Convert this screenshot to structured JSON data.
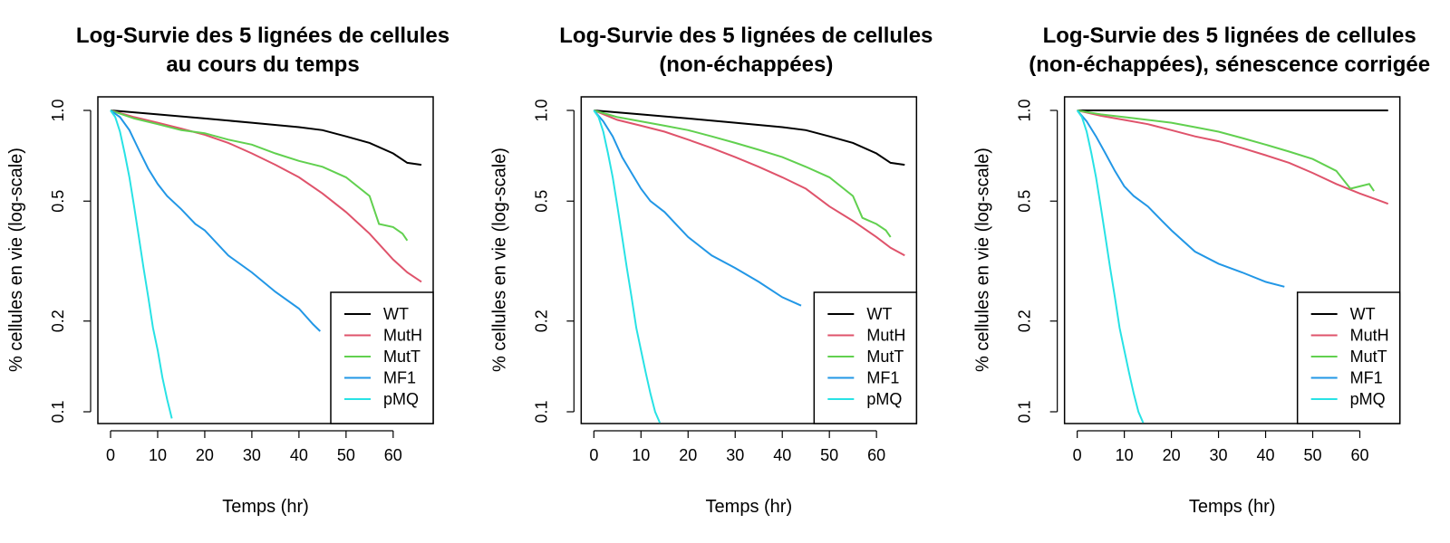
{
  "chart_data": [
    {
      "type": "line",
      "title": [
        "Log-Survie des 5 lignées de cellules",
        "au cours du temps"
      ],
      "xlabel": "Temps (hr)",
      "ylabel": "% cellules en vie (log-scale)",
      "xlim": [
        0,
        66
      ],
      "ylim": [
        0.1,
        1.0
      ],
      "y_scale": "log",
      "xticks": [
        0,
        10,
        20,
        30,
        40,
        50,
        60
      ],
      "yticks": [
        0.1,
        0.2,
        0.5,
        1.0
      ],
      "ytick_labels": [
        "0.1",
        "0.2",
        "0.5",
        "1.0"
      ],
      "legend_position": "bottom-right",
      "series": [
        {
          "name": "WT",
          "color": "#000000",
          "x": [
            0,
            10,
            20,
            30,
            40,
            45,
            50,
            55,
            60,
            63,
            66
          ],
          "values": [
            1.0,
            0.97,
            0.94,
            0.91,
            0.88,
            0.86,
            0.82,
            0.78,
            0.72,
            0.67,
            0.66
          ]
        },
        {
          "name": "MutH",
          "color": "#DF536B",
          "x": [
            0,
            5,
            10,
            15,
            20,
            25,
            30,
            35,
            40,
            45,
            50,
            55,
            60,
            63,
            66
          ],
          "values": [
            1.0,
            0.95,
            0.91,
            0.87,
            0.83,
            0.78,
            0.72,
            0.66,
            0.6,
            0.53,
            0.46,
            0.39,
            0.32,
            0.29,
            0.27
          ]
        },
        {
          "name": "MutT",
          "color": "#61D04F",
          "x": [
            0,
            5,
            10,
            15,
            20,
            25,
            30,
            35,
            40,
            45,
            50,
            55,
            57,
            60,
            62,
            63
          ],
          "values": [
            1.0,
            0.94,
            0.9,
            0.86,
            0.84,
            0.8,
            0.77,
            0.72,
            0.68,
            0.65,
            0.6,
            0.52,
            0.42,
            0.41,
            0.39,
            0.37
          ]
        },
        {
          "name": "MF1",
          "color": "#2297E6",
          "x": [
            0,
            2,
            4,
            6,
            8,
            10,
            12,
            15,
            18,
            20,
            25,
            30,
            35,
            40,
            43,
            44.5
          ],
          "values": [
            1.0,
            0.95,
            0.86,
            0.74,
            0.64,
            0.57,
            0.52,
            0.47,
            0.42,
            0.4,
            0.33,
            0.29,
            0.25,
            0.22,
            0.195,
            0.185
          ]
        },
        {
          "name": "pMQ",
          "color": "#28E2E5",
          "x": [
            0,
            1,
            2,
            3,
            4,
            5,
            6,
            7,
            8,
            9,
            10,
            11,
            12,
            13
          ],
          "values": [
            1.0,
            0.95,
            0.85,
            0.72,
            0.6,
            0.48,
            0.38,
            0.3,
            0.24,
            0.19,
            0.16,
            0.13,
            0.11,
            0.095
          ]
        }
      ]
    },
    {
      "type": "line",
      "title": [
        "Log-Survie des 5 lignées de cellules",
        "(non-échappées)"
      ],
      "xlabel": "Temps (hr)",
      "ylabel": "% cellules en vie (log-scale)",
      "xlim": [
        0,
        66
      ],
      "ylim": [
        0.1,
        1.0
      ],
      "y_scale": "log",
      "xticks": [
        0,
        10,
        20,
        30,
        40,
        50,
        60
      ],
      "yticks": [
        0.1,
        0.2,
        0.5,
        1.0
      ],
      "ytick_labels": [
        "0.1",
        "0.2",
        "0.5",
        "1.0"
      ],
      "legend_position": "bottom-right",
      "series": [
        {
          "name": "WT",
          "color": "#000000",
          "x": [
            0,
            10,
            20,
            30,
            40,
            45,
            50,
            55,
            60,
            63,
            66
          ],
          "values": [
            1.0,
            0.97,
            0.94,
            0.91,
            0.88,
            0.86,
            0.82,
            0.78,
            0.72,
            0.67,
            0.66
          ]
        },
        {
          "name": "MutH",
          "color": "#DF536B",
          "x": [
            0,
            5,
            10,
            15,
            20,
            25,
            30,
            35,
            40,
            45,
            50,
            55,
            60,
            63,
            66
          ],
          "values": [
            1.0,
            0.93,
            0.89,
            0.85,
            0.8,
            0.75,
            0.7,
            0.65,
            0.6,
            0.55,
            0.48,
            0.43,
            0.38,
            0.35,
            0.33
          ]
        },
        {
          "name": "MutT",
          "color": "#61D04F",
          "x": [
            0,
            5,
            10,
            15,
            20,
            25,
            30,
            35,
            40,
            45,
            50,
            55,
            57,
            60,
            62,
            63
          ],
          "values": [
            1.0,
            0.95,
            0.92,
            0.89,
            0.86,
            0.82,
            0.78,
            0.74,
            0.7,
            0.65,
            0.6,
            0.52,
            0.44,
            0.42,
            0.4,
            0.38
          ]
        },
        {
          "name": "MF1",
          "color": "#2297E6",
          "x": [
            0,
            2,
            4,
            6,
            8,
            10,
            12,
            15,
            18,
            20,
            25,
            30,
            35,
            40,
            44
          ],
          "values": [
            1.0,
            0.92,
            0.82,
            0.7,
            0.62,
            0.55,
            0.5,
            0.46,
            0.41,
            0.38,
            0.33,
            0.3,
            0.27,
            0.24,
            0.225
          ]
        },
        {
          "name": "pMQ",
          "color": "#28E2E5",
          "x": [
            0,
            1,
            2,
            3,
            4,
            5,
            6,
            7,
            8,
            9,
            10,
            11,
            12,
            13,
            14
          ],
          "values": [
            1.0,
            0.95,
            0.85,
            0.72,
            0.6,
            0.48,
            0.38,
            0.3,
            0.24,
            0.19,
            0.16,
            0.135,
            0.115,
            0.1,
            0.092
          ]
        }
      ]
    },
    {
      "type": "line",
      "title": [
        "Log-Survie des 5 lignées de cellules",
        "(non-échappées), sénescence corrigée"
      ],
      "xlabel": "Temps (hr)",
      "ylabel": "% cellules en vie (log-scale)",
      "xlim": [
        0,
        66
      ],
      "ylim": [
        0.1,
        1.0
      ],
      "y_scale": "log",
      "xticks": [
        0,
        10,
        20,
        30,
        40,
        50,
        60
      ],
      "yticks": [
        0.1,
        0.2,
        0.5,
        1.0
      ],
      "ytick_labels": [
        "0.1",
        "0.2",
        "0.5",
        "1.0"
      ],
      "legend_position": "bottom-right",
      "series": [
        {
          "name": "WT",
          "color": "#000000",
          "x": [
            0,
            66
          ],
          "values": [
            1.0,
            1.0
          ]
        },
        {
          "name": "MutH",
          "color": "#DF536B",
          "x": [
            0,
            5,
            10,
            15,
            20,
            25,
            30,
            35,
            40,
            45,
            50,
            55,
            60,
            63,
            66
          ],
          "values": [
            1.0,
            0.96,
            0.93,
            0.9,
            0.86,
            0.82,
            0.79,
            0.75,
            0.71,
            0.67,
            0.62,
            0.57,
            0.53,
            0.51,
            0.49
          ]
        },
        {
          "name": "MutT",
          "color": "#61D04F",
          "x": [
            0,
            5,
            10,
            15,
            20,
            25,
            30,
            35,
            40,
            45,
            50,
            55,
            58,
            60,
            62,
            63
          ],
          "values": [
            1.0,
            0.97,
            0.95,
            0.93,
            0.91,
            0.88,
            0.85,
            0.81,
            0.77,
            0.73,
            0.69,
            0.63,
            0.55,
            0.56,
            0.57,
            0.54
          ]
        },
        {
          "name": "MF1",
          "color": "#2297E6",
          "x": [
            0,
            2,
            4,
            6,
            8,
            10,
            12,
            15,
            18,
            20,
            25,
            30,
            35,
            40,
            44
          ],
          "values": [
            1.0,
            0.92,
            0.82,
            0.72,
            0.63,
            0.56,
            0.52,
            0.48,
            0.43,
            0.4,
            0.34,
            0.31,
            0.29,
            0.27,
            0.26
          ]
        },
        {
          "name": "pMQ",
          "color": "#28E2E5",
          "x": [
            0,
            1,
            2,
            3,
            4,
            5,
            6,
            7,
            8,
            9,
            10,
            11,
            12,
            13,
            14
          ],
          "values": [
            1.0,
            0.95,
            0.85,
            0.72,
            0.6,
            0.48,
            0.38,
            0.3,
            0.24,
            0.19,
            0.16,
            0.135,
            0.115,
            0.1,
            0.092
          ]
        }
      ]
    }
  ]
}
